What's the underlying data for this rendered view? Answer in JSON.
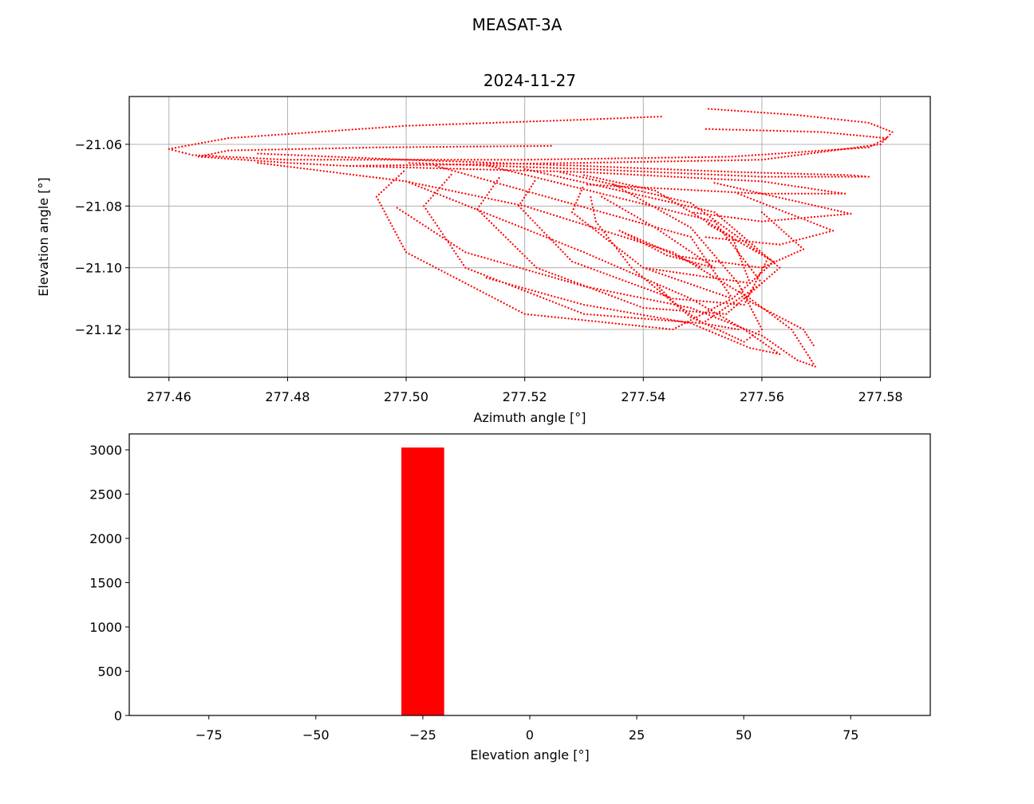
{
  "figure": {
    "suptitle": "MEASAT-3A"
  },
  "colors": {
    "data": "#ff0000",
    "grid": "#b0b0b0",
    "axes": "#000000",
    "background": "#ffffff"
  },
  "chart_data": [
    {
      "type": "scatter",
      "title": "2024-11-27",
      "xlabel": "Azimuth angle [°]",
      "ylabel": "Elevation angle [°]",
      "xlim": [
        277.4533,
        277.5884
      ],
      "ylim": [
        -21.1355,
        -21.0445
      ],
      "xticks": [
        277.46,
        277.48,
        277.5,
        277.52,
        277.54,
        277.56,
        277.58
      ],
      "xtick_labels": [
        "277.46",
        "277.48",
        "277.50",
        "277.52",
        "277.54",
        "277.56",
        "277.58"
      ],
      "yticks": [
        -21.06,
        -21.08,
        -21.1,
        -21.12
      ],
      "ytick_labels": [
        "−21.06",
        "−21.08",
        "−21.10",
        "−21.12"
      ],
      "grid": true,
      "marker": "point",
      "series": [
        {
          "path_segments": [
            [
              [
                277.551,
                -21.0485
              ],
              [
                277.566,
                -21.0505
              ],
              [
                277.578,
                -21.053
              ],
              [
                277.582,
                -21.056
              ],
              [
                277.58,
                -21.06
              ],
              [
                277.56,
                -21.065
              ],
              [
                277.53,
                -21.066
              ],
              [
                277.49,
                -21.067
              ],
              [
                277.48,
                -21.066
              ],
              [
                277.465,
                -21.064
              ],
              [
                277.47,
                -21.062
              ],
              [
                277.495,
                -21.061
              ],
              [
                277.525,
                -21.0605
              ]
            ],
            [
              [
                277.543,
                -21.051
              ],
              [
                277.53,
                -21.052
              ],
              [
                277.5,
                -21.054
              ],
              [
                277.47,
                -21.058
              ],
              [
                277.46,
                -21.0615
              ],
              [
                277.464,
                -21.0635
              ],
              [
                277.48,
                -21.065
              ],
              [
                277.52,
                -21.065
              ],
              [
                277.555,
                -21.064
              ],
              [
                277.578,
                -21.061
              ],
              [
                277.581,
                -21.058
              ],
              [
                277.57,
                -21.056
              ],
              [
                277.55,
                -21.055
              ]
            ],
            [
              [
                277.475,
                -21.063
              ],
              [
                277.5,
                -21.065
              ],
              [
                277.53,
                -21.067
              ],
              [
                277.556,
                -21.069
              ],
              [
                277.575,
                -21.07
              ],
              [
                277.578,
                -21.0705
              ],
              [
                277.56,
                -21.0705
              ],
              [
                277.53,
                -21.068
              ],
              [
                277.5,
                -21.066
              ]
            ],
            [
              [
                277.49,
                -21.067
              ],
              [
                277.53,
                -21.069
              ],
              [
                277.56,
                -21.072
              ],
              [
                277.574,
                -21.076
              ],
              [
                277.56,
                -21.076
              ],
              [
                277.53,
                -21.073
              ]
            ],
            [
              [
                277.552,
                -21.0725
              ],
              [
                277.575,
                -21.0825
              ],
              [
                277.56,
                -21.085
              ],
              [
                277.548,
                -21.082
              ]
            ],
            [
              [
                277.556,
                -21.076
              ],
              [
                277.572,
                -21.088
              ],
              [
                277.563,
                -21.0925
              ],
              [
                277.55,
                -21.09
              ]
            ],
            [
              [
                277.56,
                -21.082
              ],
              [
                277.567,
                -21.094
              ],
              [
                277.56,
                -21.1
              ],
              [
                277.545,
                -21.096
              ]
            ],
            [
              [
                277.551,
                -21.086
              ],
              [
                277.562,
                -21.098
              ],
              [
                277.558,
                -21.105
              ],
              [
                277.54,
                -21.1
              ]
            ],
            [
              [
                277.53,
                -21.07
              ],
              [
                277.542,
                -21.075
              ],
              [
                277.555,
                -21.09
              ],
              [
                277.558,
                -21.105
              ],
              [
                277.555,
                -21.11
              ],
              [
                277.54,
                -21.1
              ],
              [
                277.528,
                -21.082
              ],
              [
                277.53,
                -21.073
              ]
            ],
            [
              [
                277.526,
                -21.069
              ],
              [
                277.548,
                -21.079
              ],
              [
                277.561,
                -21.097
              ],
              [
                277.557,
                -21.112
              ],
              [
                277.545,
                -21.11
              ],
              [
                277.528,
                -21.098
              ],
              [
                277.519,
                -21.08
              ],
              [
                277.522,
                -21.071
              ]
            ],
            [
              [
                277.52,
                -21.068
              ],
              [
                277.552,
                -21.082
              ],
              [
                277.563,
                -21.1
              ],
              [
                277.554,
                -21.115
              ],
              [
                277.54,
                -21.113
              ],
              [
                277.522,
                -21.1
              ],
              [
                277.512,
                -21.081
              ],
              [
                277.516,
                -21.07
              ]
            ],
            [
              [
                277.514,
                -21.067
              ],
              [
                277.552,
                -21.085
              ],
              [
                277.56,
                -21.105
              ],
              [
                277.55,
                -21.118
              ],
              [
                277.53,
                -21.115
              ],
              [
                277.51,
                -21.1
              ],
              [
                277.503,
                -21.08
              ],
              [
                277.508,
                -21.069
              ]
            ],
            [
              [
                277.505,
                -21.067
              ],
              [
                277.548,
                -21.09
              ],
              [
                277.555,
                -21.11
              ],
              [
                277.545,
                -21.12
              ],
              [
                277.52,
                -21.115
              ],
              [
                277.5,
                -21.095
              ],
              [
                277.495,
                -21.077
              ],
              [
                277.5,
                -21.068
              ]
            ],
            [
              [
                277.535,
                -21.073
              ],
              [
                277.548,
                -21.087
              ],
              [
                277.556,
                -21.105
              ],
              [
                277.56,
                -21.12
              ],
              [
                277.557,
                -21.124
              ],
              [
                277.548,
                -21.116
              ],
              [
                277.538,
                -21.1
              ],
              [
                277.532,
                -21.085
              ],
              [
                277.531,
                -21.076
              ]
            ],
            [
              [
                277.533,
                -21.077
              ],
              [
                277.542,
                -21.087
              ],
              [
                277.552,
                -21.1
              ],
              [
                277.544,
                -21.096
              ],
              [
                277.536,
                -21.088
              ],
              [
                277.542,
                -21.093
              ],
              [
                277.55,
                -21.1
              ]
            ],
            [
              [
                277.475,
                -21.066
              ],
              [
                277.5,
                -21.072
              ],
              [
                277.52,
                -21.08
              ],
              [
                277.545,
                -21.095
              ],
              [
                277.558,
                -21.11
              ],
              [
                277.565,
                -21.12
              ],
              [
                277.569,
                -21.132
              ],
              [
                277.566,
                -21.13
              ],
              [
                277.56,
                -21.122
              ],
              [
                277.548,
                -21.113
              ],
              [
                277.53,
                -21.106
              ],
              [
                277.51,
                -21.095
              ],
              [
                277.498,
                -21.08
              ]
            ],
            [
              [
                277.5,
                -21.072
              ],
              [
                277.53,
                -21.095
              ],
              [
                277.548,
                -21.11
              ],
              [
                277.557,
                -21.12
              ],
              [
                277.563,
                -21.128
              ],
              [
                277.558,
                -21.126
              ],
              [
                277.548,
                -21.118
              ],
              [
                277.53,
                -21.112
              ],
              [
                277.513,
                -21.103
              ]
            ],
            [
              [
                277.557,
                -21.11
              ],
              [
                277.562,
                -21.115
              ],
              [
                277.567,
                -21.12
              ],
              [
                277.569,
                -21.126
              ]
            ],
            [
              [
                277.556,
                -21.12
              ],
              [
                277.55,
                -21.118
              ],
              [
                277.545,
                -21.111
              ],
              [
                277.542,
                -21.105
              ]
            ]
          ],
          "points_per_unit": 1
        }
      ]
    },
    {
      "type": "bar",
      "xlabel": "Elevation angle [°]",
      "ylabel": "",
      "xlim": [
        -93.6,
        93.6
      ],
      "ylim": [
        0,
        3180
      ],
      "bin_edges": [
        -30,
        -20
      ],
      "counts": [
        3026
      ],
      "xticks": [
        -75,
        -50,
        -25,
        0,
        25,
        50,
        75
      ],
      "xtick_labels": [
        "−75",
        "−50",
        "−25",
        "0",
        "25",
        "50",
        "75"
      ],
      "yticks": [
        0,
        500,
        1000,
        1500,
        2000,
        2500,
        3000
      ],
      "ytick_labels": [
        "0",
        "500",
        "1000",
        "1500",
        "2000",
        "2500",
        "3000"
      ],
      "grid": false
    }
  ]
}
